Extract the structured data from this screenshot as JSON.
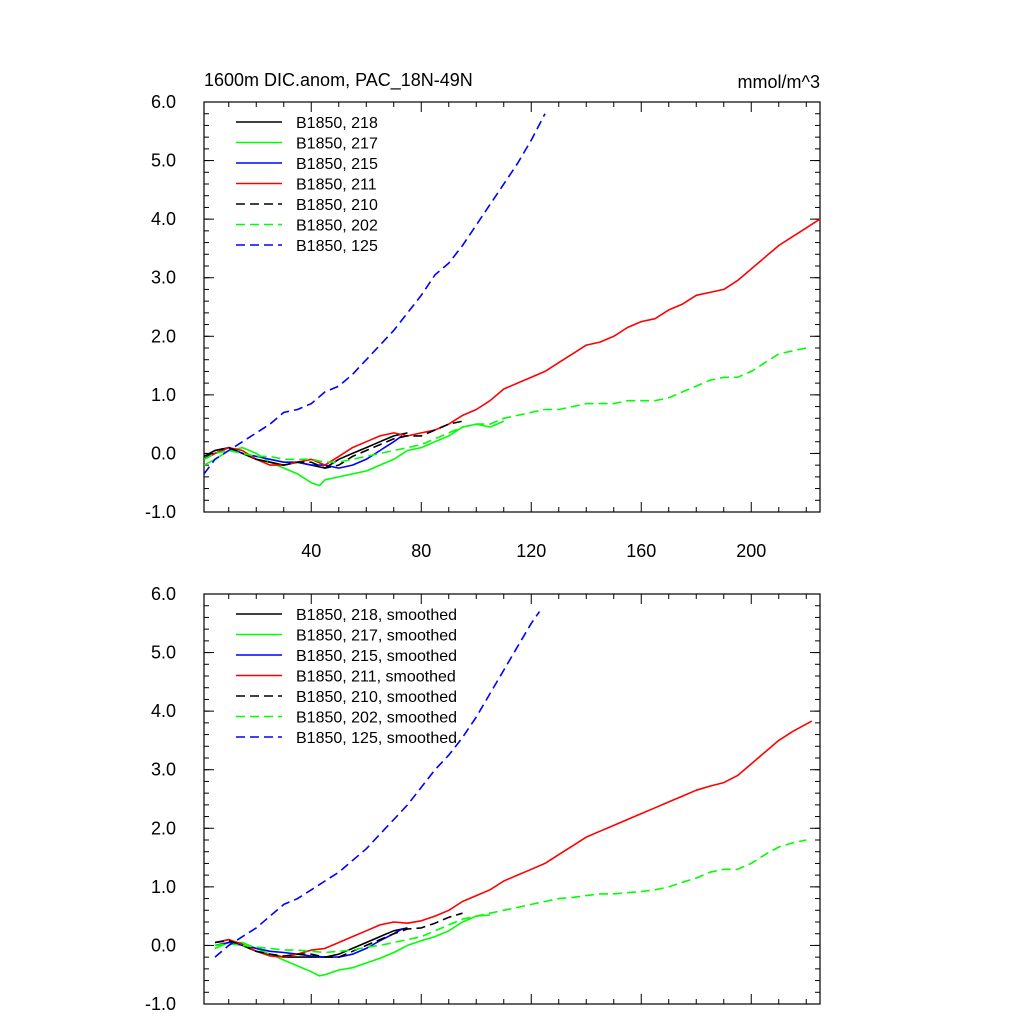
{
  "chart_data": [
    {
      "type": "line",
      "title": "1600m DIC.anom, PAC_18N-49N",
      "units": "mmol/m^3",
      "xlim": [
        1,
        225
      ],
      "ylim": [
        -1.0,
        6.0
      ],
      "x_ticks": [
        40,
        80,
        120,
        160,
        200
      ],
      "x_tick_labels": [
        "40",
        "80",
        "120",
        "160",
        "200"
      ],
      "y_ticks": [
        -1.0,
        0.0,
        1.0,
        2.0,
        3.0,
        4.0,
        5.0,
        6.0
      ],
      "y_tick_labels": [
        "-1.0",
        "0.0",
        "1.0",
        "2.0",
        "3.0",
        "4.0",
        "5.0",
        "6.0"
      ],
      "legend_position": "top-left",
      "series": [
        {
          "name": "B1850, 218",
          "color": "#000000",
          "dash": "solid",
          "x": [
            1,
            5,
            10,
            15,
            20,
            25,
            30,
            35,
            40,
            45,
            50,
            55,
            60,
            65,
            70,
            75
          ],
          "y": [
            -0.05,
            0.05,
            0.1,
            0.0,
            -0.1,
            -0.15,
            -0.2,
            -0.15,
            -0.2,
            -0.25,
            -0.1,
            0.0,
            0.1,
            0.2,
            0.3,
            0.35
          ]
        },
        {
          "name": "B1850, 217",
          "color": "#00ff00",
          "dash": "solid",
          "x": [
            1,
            5,
            10,
            15,
            20,
            25,
            30,
            35,
            40,
            43,
            45,
            50,
            55,
            60,
            65,
            70,
            75,
            80,
            85,
            90,
            95,
            100,
            105,
            110
          ],
          "y": [
            -0.2,
            -0.1,
            0.05,
            0.1,
            0.0,
            -0.15,
            -0.25,
            -0.35,
            -0.5,
            -0.55,
            -0.45,
            -0.4,
            -0.35,
            -0.3,
            -0.2,
            -0.1,
            0.05,
            0.1,
            0.2,
            0.3,
            0.45,
            0.5,
            0.45,
            0.55
          ]
        },
        {
          "name": "B1850, 215",
          "color": "#0000ff",
          "dash": "solid",
          "x": [
            1,
            5,
            10,
            15,
            20,
            25,
            30,
            35,
            40,
            45,
            50,
            55,
            60,
            65,
            70,
            73
          ],
          "y": [
            -0.1,
            0.0,
            0.1,
            0.0,
            -0.05,
            -0.1,
            -0.15,
            -0.15,
            -0.2,
            -0.2,
            -0.25,
            -0.2,
            -0.1,
            0.05,
            0.2,
            0.3
          ]
        },
        {
          "name": "B1850, 211",
          "color": "#ff0000",
          "dash": "solid",
          "x": [
            1,
            5,
            10,
            15,
            20,
            25,
            30,
            35,
            40,
            45,
            50,
            55,
            60,
            65,
            70,
            75,
            80,
            85,
            90,
            95,
            100,
            105,
            110,
            115,
            120,
            125,
            130,
            135,
            140,
            145,
            150,
            155,
            160,
            165,
            170,
            175,
            180,
            185,
            190,
            195,
            200,
            205,
            210,
            215,
            220,
            225
          ],
          "y": [
            -0.1,
            0.0,
            0.1,
            0.05,
            -0.1,
            -0.2,
            -0.2,
            -0.15,
            -0.1,
            -0.2,
            -0.05,
            0.1,
            0.2,
            0.3,
            0.35,
            0.3,
            0.35,
            0.4,
            0.5,
            0.65,
            0.75,
            0.9,
            1.1,
            1.2,
            1.3,
            1.4,
            1.55,
            1.7,
            1.85,
            1.9,
            2.0,
            2.15,
            2.25,
            2.3,
            2.45,
            2.55,
            2.7,
            2.75,
            2.8,
            2.95,
            3.15,
            3.35,
            3.55,
            3.7,
            3.85,
            4.0
          ]
        },
        {
          "name": "B1850, 210",
          "color": "#000000",
          "dash": "dash",
          "x": [
            1,
            5,
            10,
            15,
            20,
            25,
            30,
            35,
            40,
            45,
            50,
            55,
            60,
            65,
            70,
            75,
            80,
            85,
            90,
            95
          ],
          "y": [
            -0.1,
            0.05,
            0.1,
            0.0,
            -0.1,
            -0.15,
            -0.2,
            -0.15,
            -0.15,
            -0.25,
            -0.2,
            -0.05,
            0.05,
            0.15,
            0.25,
            0.3,
            0.3,
            0.4,
            0.5,
            0.55
          ]
        },
        {
          "name": "B1850, 202",
          "color": "#00ff00",
          "dash": "dash",
          "x": [
            1,
            5,
            10,
            15,
            20,
            25,
            30,
            35,
            40,
            45,
            50,
            55,
            60,
            65,
            70,
            75,
            80,
            85,
            90,
            95,
            100,
            105,
            110,
            115,
            120,
            125,
            130,
            135,
            140,
            145,
            150,
            155,
            160,
            165,
            170,
            175,
            180,
            185,
            190,
            195,
            200,
            205,
            210,
            215,
            220
          ],
          "y": [
            -0.1,
            0.0,
            0.05,
            0.0,
            -0.05,
            -0.05,
            -0.1,
            -0.1,
            -0.1,
            -0.15,
            -0.15,
            -0.1,
            -0.05,
            0.0,
            0.05,
            0.1,
            0.15,
            0.25,
            0.35,
            0.45,
            0.5,
            0.5,
            0.6,
            0.65,
            0.7,
            0.75,
            0.75,
            0.8,
            0.85,
            0.85,
            0.85,
            0.9,
            0.9,
            0.9,
            0.95,
            1.05,
            1.15,
            1.25,
            1.3,
            1.3,
            1.4,
            1.55,
            1.7,
            1.75,
            1.8
          ]
        },
        {
          "name": "B1850, 125",
          "color": "#0000ff",
          "dash": "dash",
          "x": [
            1,
            5,
            10,
            15,
            20,
            25,
            30,
            35,
            40,
            45,
            50,
            55,
            60,
            65,
            70,
            75,
            80,
            85,
            90,
            95,
            100,
            105,
            110,
            115,
            120,
            125
          ],
          "y": [
            -0.35,
            -0.1,
            0.05,
            0.2,
            0.35,
            0.5,
            0.7,
            0.75,
            0.85,
            1.05,
            1.15,
            1.35,
            1.6,
            1.85,
            2.1,
            2.4,
            2.7,
            3.05,
            3.25,
            3.55,
            3.9,
            4.25,
            4.6,
            4.95,
            5.35,
            5.8
          ]
        }
      ]
    },
    {
      "type": "line",
      "xlim": [
        1,
        225
      ],
      "ylim": [
        -1.0,
        6.0
      ],
      "y_ticks": [
        -1.0,
        0.0,
        1.0,
        2.0,
        3.0,
        4.0,
        5.0,
        6.0
      ],
      "y_tick_labels": [
        "-1.0",
        "0.0",
        "1.0",
        "2.0",
        "3.0",
        "4.0",
        "5.0",
        "6.0"
      ],
      "legend_position": "top-left",
      "series": [
        {
          "name": "B1850, 218, smoothed",
          "color": "#000000",
          "dash": "solid",
          "x": [
            5,
            10,
            15,
            20,
            25,
            30,
            35,
            40,
            45,
            50,
            55,
            60,
            65,
            70,
            75
          ],
          "y": [
            0.05,
            0.1,
            0.0,
            -0.1,
            -0.15,
            -0.2,
            -0.2,
            -0.2,
            -0.2,
            -0.15,
            -0.05,
            0.05,
            0.15,
            0.25,
            0.3
          ]
        },
        {
          "name": "B1850, 217, smoothed",
          "color": "#00ff00",
          "dash": "solid",
          "x": [
            5,
            10,
            15,
            20,
            25,
            30,
            35,
            40,
            43,
            45,
            50,
            55,
            60,
            65,
            70,
            75,
            80,
            85,
            90,
            95,
            100,
            105
          ],
          "y": [
            -0.05,
            0.05,
            0.05,
            -0.05,
            -0.15,
            -0.25,
            -0.35,
            -0.45,
            -0.52,
            -0.5,
            -0.42,
            -0.38,
            -0.3,
            -0.22,
            -0.12,
            0.0,
            0.08,
            0.15,
            0.25,
            0.4,
            0.5,
            0.52
          ]
        },
        {
          "name": "B1850, 215, smoothed",
          "color": "#0000ff",
          "dash": "solid",
          "x": [
            5,
            10,
            15,
            20,
            25,
            30,
            35,
            40,
            45,
            50,
            55,
            60,
            65,
            70,
            73
          ],
          "y": [
            0.0,
            0.05,
            0.0,
            -0.05,
            -0.1,
            -0.12,
            -0.15,
            -0.18,
            -0.2,
            -0.2,
            -0.15,
            -0.05,
            0.08,
            0.2,
            0.28
          ]
        },
        {
          "name": "B1850, 211, smoothed",
          "color": "#ff0000",
          "dash": "solid",
          "x": [
            5,
            10,
            15,
            20,
            25,
            30,
            35,
            40,
            45,
            50,
            55,
            60,
            65,
            70,
            75,
            80,
            85,
            90,
            95,
            100,
            105,
            110,
            115,
            120,
            125,
            130,
            135,
            140,
            145,
            150,
            155,
            160,
            165,
            170,
            175,
            180,
            185,
            190,
            195,
            200,
            205,
            210,
            215,
            222
          ],
          "y": [
            0.05,
            0.1,
            0.02,
            -0.1,
            -0.18,
            -0.2,
            -0.15,
            -0.08,
            -0.05,
            0.05,
            0.15,
            0.25,
            0.35,
            0.4,
            0.38,
            0.42,
            0.5,
            0.6,
            0.75,
            0.85,
            0.95,
            1.1,
            1.2,
            1.3,
            1.4,
            1.55,
            1.7,
            1.85,
            1.95,
            2.05,
            2.15,
            2.25,
            2.35,
            2.45,
            2.55,
            2.65,
            2.72,
            2.78,
            2.9,
            3.1,
            3.3,
            3.5,
            3.65,
            3.83
          ]
        },
        {
          "name": "B1850, 210, smoothed",
          "color": "#000000",
          "dash": "dash",
          "x": [
            5,
            10,
            15,
            20,
            25,
            30,
            35,
            40,
            45,
            50,
            55,
            60,
            65,
            70,
            75,
            80,
            85,
            90,
            95
          ],
          "y": [
            0.05,
            0.08,
            0.0,
            -0.1,
            -0.15,
            -0.18,
            -0.15,
            -0.15,
            -0.2,
            -0.2,
            -0.1,
            0.0,
            0.1,
            0.2,
            0.28,
            0.3,
            0.38,
            0.48,
            0.55
          ]
        },
        {
          "name": "B1850, 202, smoothed",
          "color": "#00ff00",
          "dash": "dash",
          "x": [
            5,
            10,
            15,
            20,
            25,
            30,
            35,
            40,
            45,
            50,
            55,
            60,
            65,
            70,
            75,
            80,
            85,
            90,
            95,
            100,
            105,
            110,
            115,
            120,
            125,
            130,
            135,
            140,
            145,
            150,
            155,
            160,
            165,
            170,
            175,
            180,
            185,
            190,
            195,
            200,
            205,
            210,
            215,
            220
          ],
          "y": [
            0.0,
            0.03,
            0.0,
            -0.03,
            -0.05,
            -0.08,
            -0.08,
            -0.1,
            -0.12,
            -0.1,
            -0.08,
            -0.03,
            0.0,
            0.05,
            0.1,
            0.15,
            0.25,
            0.35,
            0.45,
            0.5,
            0.55,
            0.6,
            0.65,
            0.7,
            0.75,
            0.8,
            0.82,
            0.85,
            0.88,
            0.88,
            0.9,
            0.92,
            0.95,
            1.0,
            1.08,
            1.15,
            1.25,
            1.3,
            1.3,
            1.4,
            1.55,
            1.68,
            1.75,
            1.8
          ]
        },
        {
          "name": "B1850, 125, smoothed",
          "color": "#0000ff",
          "dash": "dash",
          "x": [
            5,
            10,
            15,
            20,
            25,
            30,
            35,
            40,
            45,
            50,
            55,
            60,
            65,
            70,
            75,
            80,
            85,
            90,
            95,
            100,
            105,
            110,
            115,
            120,
            123
          ],
          "y": [
            -0.2,
            0.0,
            0.15,
            0.3,
            0.5,
            0.7,
            0.8,
            0.95,
            1.1,
            1.25,
            1.45,
            1.65,
            1.9,
            2.15,
            2.4,
            2.7,
            3.0,
            3.25,
            3.55,
            3.9,
            4.3,
            4.7,
            5.1,
            5.5,
            5.7
          ]
        }
      ]
    }
  ]
}
